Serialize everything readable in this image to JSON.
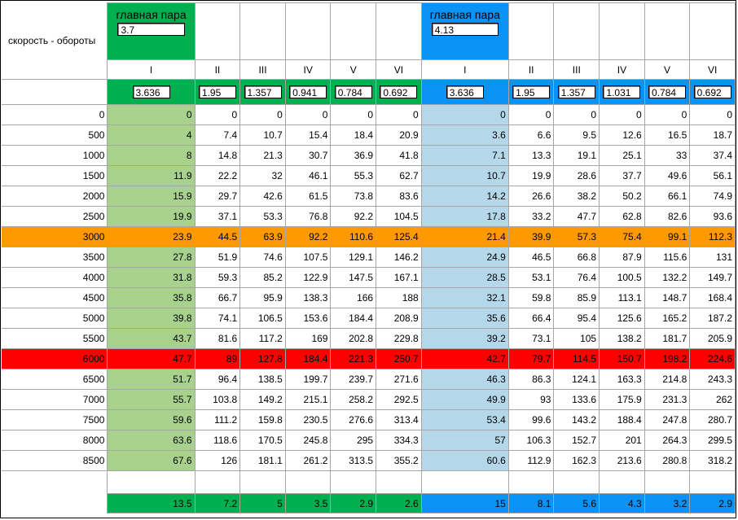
{
  "row_label": "скорость - обороты",
  "groups": [
    {
      "id": "green",
      "title": "главная пара",
      "final_drive": "3.7",
      "color": "#00b050",
      "light_color": "#a9d18e",
      "gears": [
        "I",
        "II",
        "III",
        "IV",
        "V",
        "VI"
      ],
      "ratios": [
        "3.636",
        "1.95",
        "1.357",
        "0.941",
        "0.784",
        "0.692"
      ],
      "bottom": [
        "13.5",
        "7.2",
        "5",
        "3.5",
        "2.9",
        "2.6"
      ]
    },
    {
      "id": "blue",
      "title": "главная пара",
      "final_drive": "4.13",
      "color": "#0a93f5",
      "light_color": "#b4d7ea",
      "gears": [
        "I",
        "II",
        "III",
        "IV",
        "V",
        "VI"
      ],
      "ratios": [
        "3.636",
        "1.95",
        "1.357",
        "1.031",
        "0.784",
        "0.692"
      ],
      "bottom": [
        "15",
        "8.1",
        "5.6",
        "4.3",
        "3.2",
        "2.9"
      ]
    }
  ],
  "highlight_colors": {
    "orange": "#ff9900",
    "red": "#ff0000"
  },
  "rows": [
    {
      "rpm": "0",
      "hl": "",
      "vals": [
        "0",
        "0",
        "0",
        "0",
        "0",
        "0",
        "0",
        "0",
        "0",
        "0",
        "0",
        "0"
      ]
    },
    {
      "rpm": "500",
      "hl": "",
      "vals": [
        "4",
        "7.4",
        "10.7",
        "15.4",
        "18.4",
        "20.9",
        "3.6",
        "6.6",
        "9.5",
        "12.6",
        "16.5",
        "18.7"
      ]
    },
    {
      "rpm": "1000",
      "hl": "",
      "vals": [
        "8",
        "14.8",
        "21.3",
        "30.7",
        "36.9",
        "41.8",
        "7.1",
        "13.3",
        "19.1",
        "25.1",
        "33",
        "37.4"
      ]
    },
    {
      "rpm": "1500",
      "hl": "",
      "vals": [
        "11.9",
        "22.2",
        "32",
        "46.1",
        "55.3",
        "62.7",
        "10.7",
        "19.9",
        "28.6",
        "37.7",
        "49.6",
        "56.1"
      ]
    },
    {
      "rpm": "2000",
      "hl": "",
      "vals": [
        "15.9",
        "29.7",
        "42.6",
        "61.5",
        "73.8",
        "83.6",
        "14.2",
        "26.6",
        "38.2",
        "50.2",
        "66.1",
        "74.9"
      ]
    },
    {
      "rpm": "2500",
      "hl": "",
      "vals": [
        "19.9",
        "37.1",
        "53.3",
        "76.8",
        "92.2",
        "104.5",
        "17.8",
        "33.2",
        "47.7",
        "62.8",
        "82.6",
        "93.6"
      ]
    },
    {
      "rpm": "3000",
      "hl": "orange",
      "vals": [
        "23.9",
        "44.5",
        "63.9",
        "92.2",
        "110.6",
        "125.4",
        "21.4",
        "39.9",
        "57.3",
        "75.4",
        "99.1",
        "112.3"
      ]
    },
    {
      "rpm": "3500",
      "hl": "",
      "vals": [
        "27.8",
        "51.9",
        "74.6",
        "107.5",
        "129.1",
        "146.2",
        "24.9",
        "46.5",
        "66.8",
        "87.9",
        "115.6",
        "131"
      ]
    },
    {
      "rpm": "4000",
      "hl": "",
      "vals": [
        "31.8",
        "59.3",
        "85.2",
        "122.9",
        "147.5",
        "167.1",
        "28.5",
        "53.1",
        "76.4",
        "100.5",
        "132.2",
        "149.7"
      ]
    },
    {
      "rpm": "4500",
      "hl": "",
      "vals": [
        "35.8",
        "66.7",
        "95.9",
        "138.3",
        "166",
        "188",
        "32.1",
        "59.8",
        "85.9",
        "113.1",
        "148.7",
        "168.4"
      ]
    },
    {
      "rpm": "5000",
      "hl": "",
      "vals": [
        "39.8",
        "74.1",
        "106.5",
        "153.6",
        "184.4",
        "208.9",
        "35.6",
        "66.4",
        "95.4",
        "125.6",
        "165.2",
        "187.2"
      ]
    },
    {
      "rpm": "5500",
      "hl": "",
      "vals": [
        "43.7",
        "81.6",
        "117.2",
        "169",
        "202.8",
        "229.8",
        "39.2",
        "73.1",
        "105",
        "138.2",
        "181.7",
        "205.9"
      ]
    },
    {
      "rpm": "6000",
      "hl": "red",
      "vals": [
        "47.7",
        "89",
        "127.8",
        "184.4",
        "221.3",
        "250.7",
        "42.7",
        "79.7",
        "114.5",
        "150.7",
        "198.2",
        "224.6"
      ]
    },
    {
      "rpm": "6500",
      "hl": "",
      "vals": [
        "51.7",
        "96.4",
        "138.5",
        "199.7",
        "239.7",
        "271.6",
        "46.3",
        "86.3",
        "124.1",
        "163.3",
        "214.8",
        "243.3"
      ]
    },
    {
      "rpm": "7000",
      "hl": "",
      "vals": [
        "55.7",
        "103.8",
        "149.2",
        "215.1",
        "258.2",
        "292.5",
        "49.9",
        "93",
        "133.6",
        "175.9",
        "231.3",
        "262"
      ]
    },
    {
      "rpm": "7500",
      "hl": "",
      "vals": [
        "59.6",
        "111.2",
        "159.8",
        "230.5",
        "276.6",
        "313.4",
        "53.4",
        "99.6",
        "143.2",
        "188.4",
        "247.8",
        "280.7"
      ]
    },
    {
      "rpm": "8000",
      "hl": "",
      "vals": [
        "63.6",
        "118.6",
        "170.5",
        "245.8",
        "295",
        "334.3",
        "57",
        "106.3",
        "152.7",
        "201",
        "264.3",
        "299.5"
      ]
    },
    {
      "rpm": "8500",
      "hl": "",
      "vals": [
        "67.6",
        "126",
        "181.1",
        "261.2",
        "313.5",
        "355.2",
        "60.6",
        "112.9",
        "162.3",
        "213.6",
        "280.8",
        "318.2"
      ]
    }
  ]
}
